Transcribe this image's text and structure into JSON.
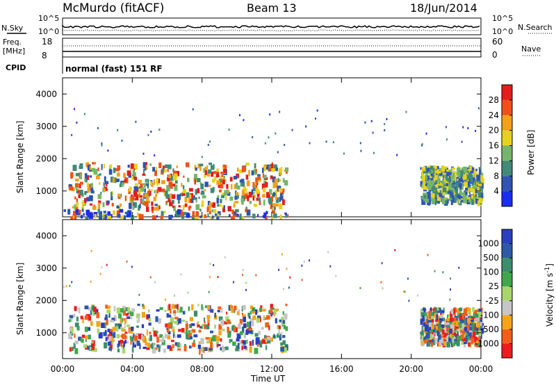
{
  "header": {
    "station": "McMurdo (fitACF)",
    "beam": "Beam 13",
    "date": "18/Jun/2014"
  },
  "aux_panels": {
    "nsky_label": "N.Sky",
    "nsearch_label": "N.Search",
    "nsky_ticks": [
      "10^5",
      "10^0"
    ],
    "nsearch_ticks": [
      "10^5",
      "10^0"
    ],
    "freq_label_top": "Freq.",
    "freq_label_unit": "[MHz]",
    "freq_ticks": [
      "18",
      "8"
    ],
    "nave_label": "Nave",
    "nave_ticks": [
      "60",
      "0"
    ],
    "cpid_label": "CPID",
    "cpid_text": "normal (fast) 151 RF"
  },
  "colors": {
    "power_scale": [
      "#1a2ef0",
      "#2e55b4",
      "#3f8a78",
      "#76b66a",
      "#e6d21e",
      "#f5a01a",
      "#f05018",
      "#e41c1c"
    ],
    "velocity_scale": [
      "#ee1c1c",
      "#f35f18",
      "#f6a31b",
      "#c6c6c6",
      "#a9d66b",
      "#40a84a",
      "#3c8e6a",
      "#2d5aa8",
      "#2a3fc0"
    ]
  },
  "chart_data": [
    {
      "type": "heatmap",
      "panel": "power",
      "title": "",
      "xlabel": "Time UT",
      "ylabel": "Slant Range [km]",
      "x_ticks": [
        "00:00",
        "04:00",
        "08:00",
        "12:00",
        "16:00",
        "20:00",
        "00:00"
      ],
      "xlim_hours": [
        0,
        24
      ],
      "ylim_km": [
        200,
        4500
      ],
      "y_ticks": [
        1000,
        2000,
        3000,
        4000
      ],
      "colorbar_label": "Power [dB]",
      "colorbar_ticks": [
        4,
        8,
        12,
        16,
        20,
        24,
        28
      ],
      "colorbar_range": [
        0,
        32
      ],
      "regions": [
        {
          "t0": 0.3,
          "t1": 12.8,
          "r_min": 500,
          "r_max": 1900,
          "value_level": "strong"
        },
        {
          "t0": 20.5,
          "t1": 24.0,
          "r_min": 700,
          "r_max": 1800,
          "value_level": "moderate"
        },
        {
          "t0": 0.0,
          "t1": 13.0,
          "r_min": 200,
          "r_max": 450,
          "value_level": "weak"
        }
      ]
    },
    {
      "type": "heatmap",
      "panel": "velocity",
      "title": "",
      "xlabel": "Time UT",
      "ylabel": "Slant Range [km]",
      "x_ticks": [
        "00:00",
        "04:00",
        "08:00",
        "12:00",
        "16:00",
        "20:00",
        "00:00"
      ],
      "xlim_hours": [
        0,
        24
      ],
      "ylim_km": [
        200,
        4500
      ],
      "y_ticks": [
        1000,
        2000,
        3000,
        4000
      ],
      "colorbar_label": "Velocity [m s^-1]",
      "colorbar_ticks": [
        "1000",
        "500",
        "100",
        "25",
        "-25",
        "-100",
        "-500",
        "-1000"
      ],
      "regions": [
        {
          "t0": 0.3,
          "t1": 12.8,
          "r_min": 500,
          "r_max": 1900,
          "value_level": "mixed"
        },
        {
          "t0": 20.5,
          "t1": 24.0,
          "r_min": 700,
          "r_max": 1800,
          "value_level": "mixed"
        }
      ]
    }
  ]
}
